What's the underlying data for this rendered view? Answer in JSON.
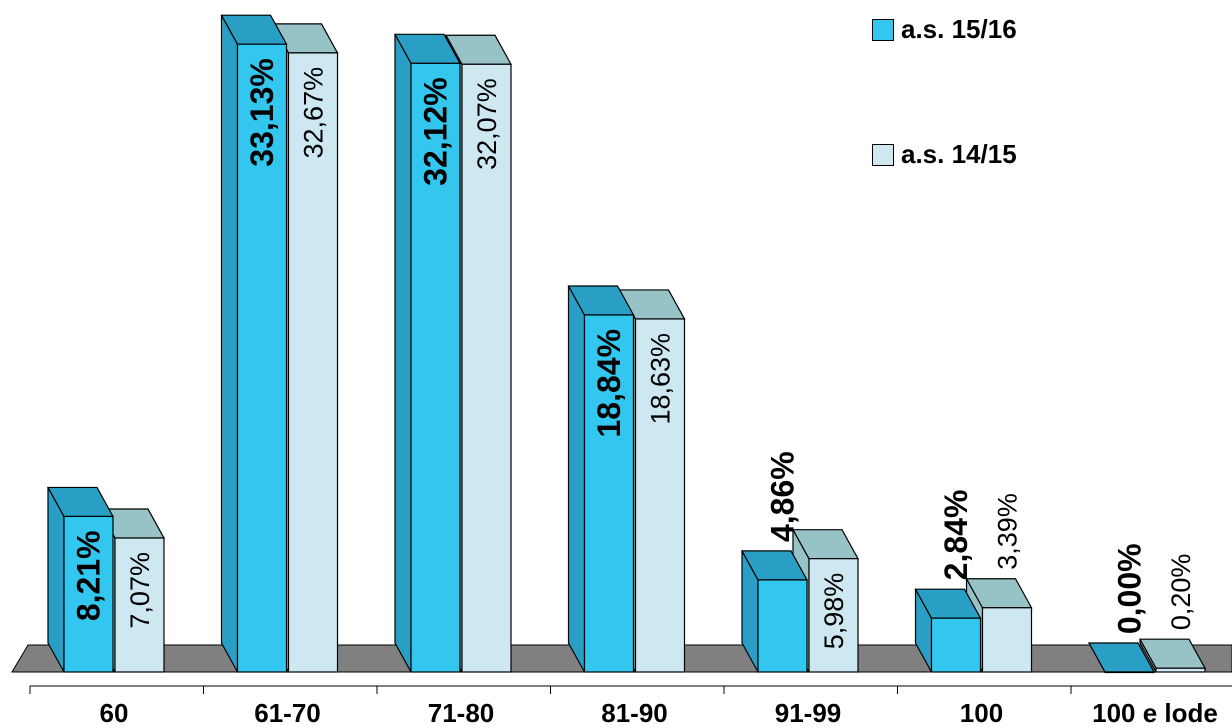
{
  "chart_data": {
    "type": "bar",
    "title": "",
    "xlabel": "",
    "ylabel": "",
    "ylim": [
      0,
      35
    ],
    "categories": [
      "60",
      "61-70",
      "71-80",
      "81-90",
      "91-99",
      "100",
      "100 e lode"
    ],
    "series": [
      {
        "name": "a.s. 15/16",
        "values": [
          8.21,
          33.13,
          32.12,
          18.84,
          4.86,
          2.84,
          0.0
        ],
        "labels": [
          "8,21%",
          "33,13%",
          "32,12%",
          "18,84%",
          "4,86%",
          "2,84%",
          "0,00%"
        ],
        "color": "#33c6ee",
        "top_color": "#2a9fc6",
        "side_color": "#2a9fc6"
      },
      {
        "name": "a.s. 14/15",
        "values": [
          7.07,
          32.67,
          32.07,
          18.63,
          5.98,
          3.39,
          0.2
        ],
        "labels": [
          "7,07%",
          "32,67%",
          "32,07%",
          "18,63%",
          "5,98%",
          "3,39%",
          "0,20%"
        ],
        "color": "#cde8f0",
        "top_color": "#97c3c6",
        "side_color": "#97c3c6"
      }
    ],
    "legend_position": "top-right",
    "grid": false,
    "floor_color": "#808080"
  }
}
